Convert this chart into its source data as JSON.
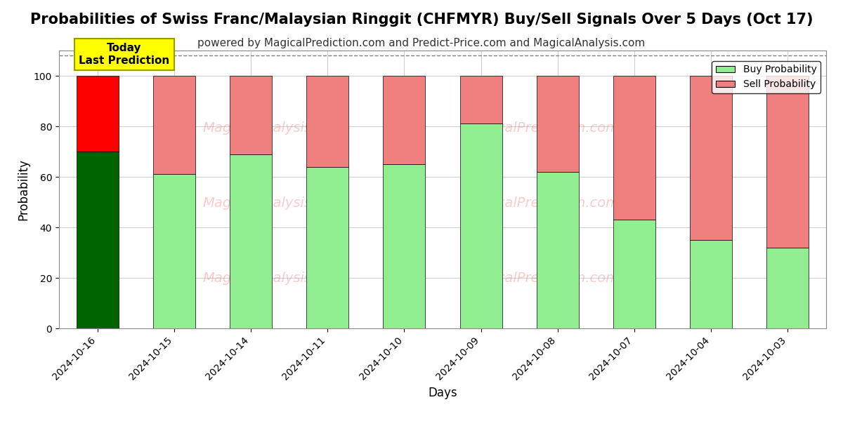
{
  "title": "Probabilities of Swiss Franc/Malaysian Ringgit (CHFMYR) Buy/Sell Signals Over 5 Days (Oct 17)",
  "subtitle": "powered by MagicalPrediction.com and Predict-Price.com and MagicalAnalysis.com",
  "xlabel": "Days",
  "ylabel": "Probability",
  "categories": [
    "2024-10-16",
    "2024-10-15",
    "2024-10-14",
    "2024-10-11",
    "2024-10-10",
    "2024-10-09",
    "2024-10-08",
    "2024-10-07",
    "2024-10-04",
    "2024-10-03"
  ],
  "buy_values": [
    70,
    61,
    69,
    64,
    65,
    81,
    62,
    43,
    35,
    32
  ],
  "sell_values": [
    30,
    39,
    31,
    36,
    35,
    19,
    38,
    57,
    65,
    68
  ],
  "buy_colors": [
    "#006400",
    "#90EE90",
    "#90EE90",
    "#90EE90",
    "#90EE90",
    "#90EE90",
    "#90EE90",
    "#90EE90",
    "#90EE90",
    "#90EE90"
  ],
  "sell_colors": [
    "#FF0000",
    "#F08080",
    "#F08080",
    "#F08080",
    "#F08080",
    "#F08080",
    "#F08080",
    "#F08080",
    "#F08080",
    "#F08080"
  ],
  "today_box_color": "#FFFF00",
  "today_text": "Today\nLast Prediction",
  "ylim": [
    0,
    110
  ],
  "dashed_line_y": 108,
  "background_color": "#ffffff",
  "grid_color": "#cccccc",
  "title_fontsize": 15,
  "subtitle_fontsize": 11,
  "legend_labels": [
    "Buy Probability",
    "Sell Probability"
  ],
  "legend_colors": [
    "#90EE90",
    "#F08080"
  ],
  "bar_width": 0.55
}
